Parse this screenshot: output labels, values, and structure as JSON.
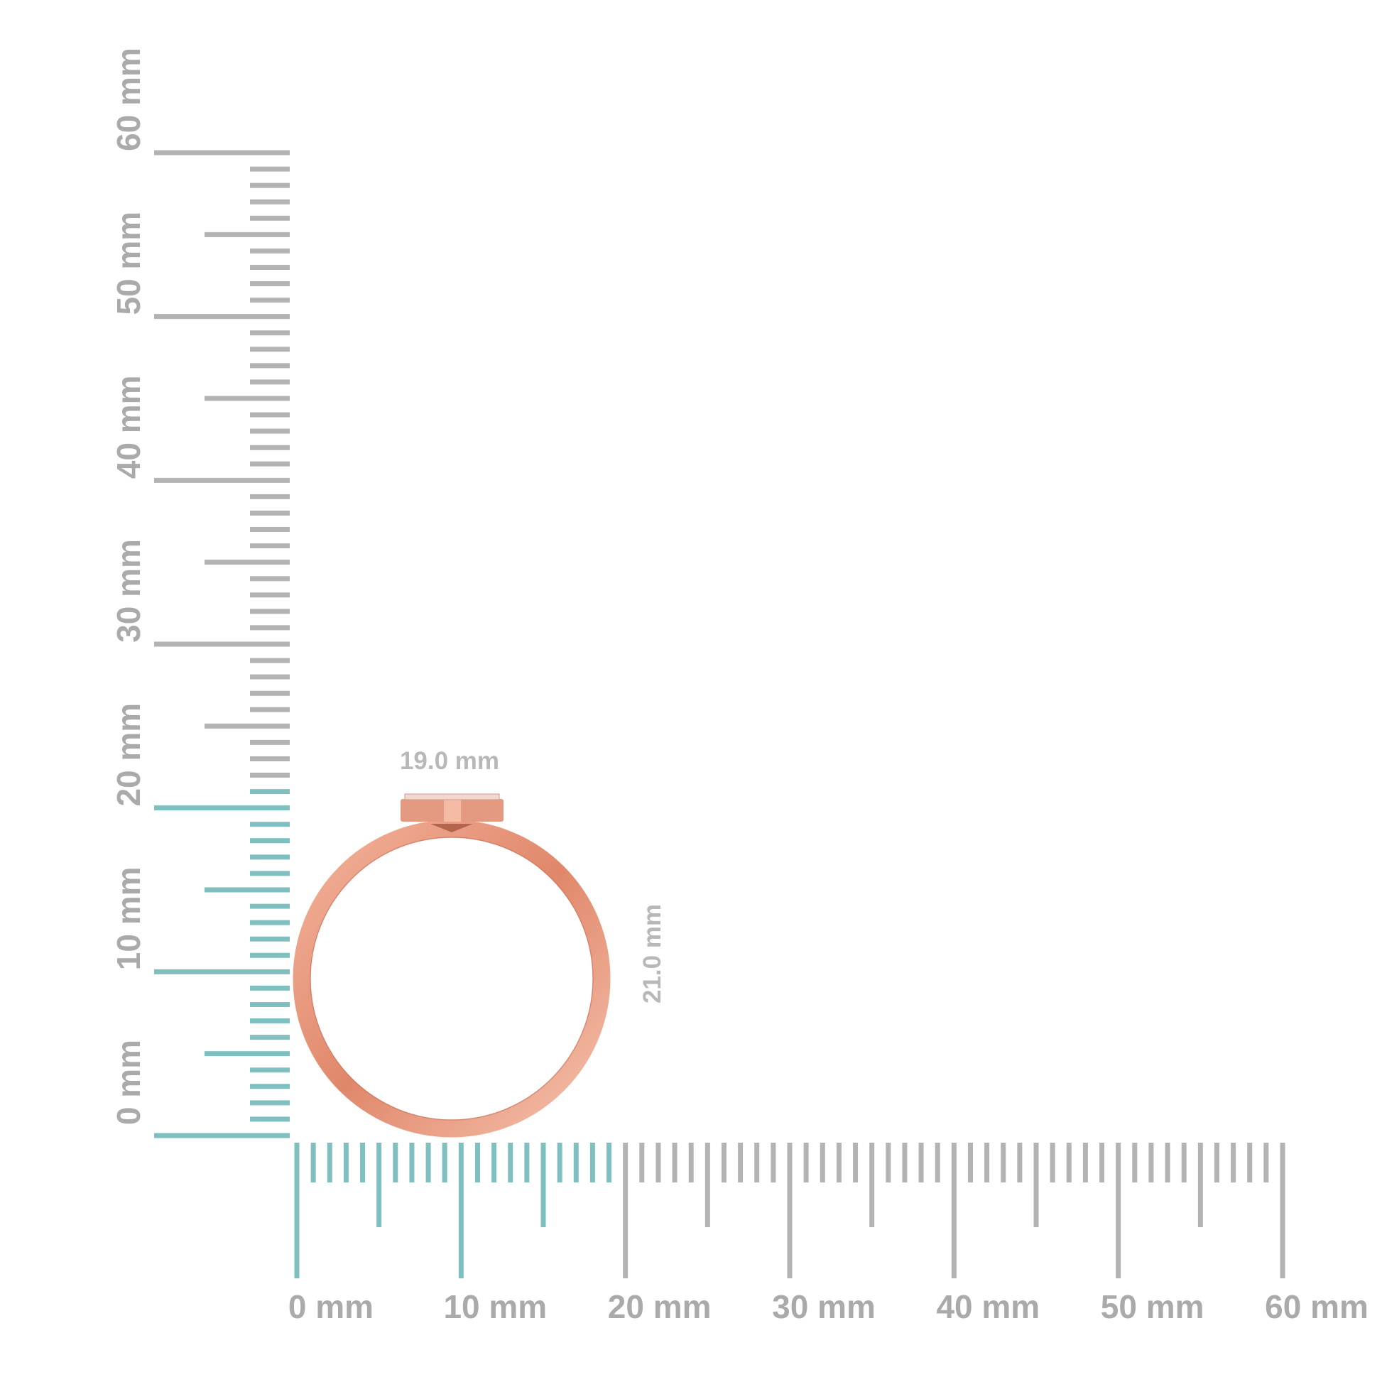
{
  "rulers": {
    "vertical": {
      "labels": [
        "0 mm",
        "10 mm",
        "20 mm",
        "30 mm",
        "40 mm",
        "50 mm",
        "60 mm"
      ],
      "max_mm": 60,
      "highlight_to_mm": 21
    },
    "horizontal": {
      "labels": [
        "0 mm",
        "10 mm",
        "20 mm",
        "30 mm",
        "40 mm",
        "50 mm",
        "60 mm"
      ],
      "max_mm": 60,
      "highlight_to_mm": 19
    },
    "highlight_color": "#7fbfbf",
    "tick_color": "#b3b3b3"
  },
  "dimensions": {
    "width_label": "19.0 mm",
    "height_label": "21.0 mm"
  },
  "product": {
    "metal_color": "#e8957a"
  }
}
